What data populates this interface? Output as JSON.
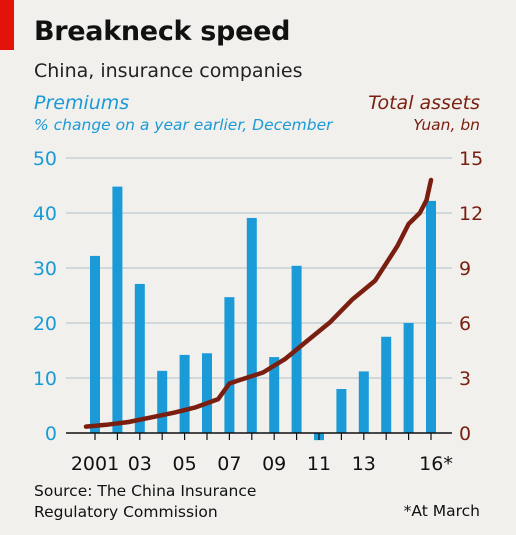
{
  "colors": {
    "accent": "#e3120b",
    "premiums": "#1a9bd7",
    "assets": "#7a1f10",
    "grid": "#bcc9d2",
    "background": "#f1f0ec"
  },
  "header": {
    "title": "Breakneck speed",
    "subtitle": "China, insurance companies"
  },
  "left_axis_title": {
    "line1": "Premiums",
    "line2": "% change on a year earlier, December"
  },
  "right_axis_title": {
    "line1": "Total assets",
    "line2": "Yuan, bn"
  },
  "footer": {
    "source_line1": "Source: The China Insurance",
    "source_line2": "Regulatory Commission",
    "footnote": "*At March"
  },
  "chart_data": {
    "type": "bar",
    "years": [
      2001,
      2002,
      2003,
      2004,
      2005,
      2006,
      2007,
      2008,
      2009,
      2010,
      2011,
      2012,
      2013,
      2014,
      2015,
      2016
    ],
    "x_tick_labels": [
      "2001",
      "03",
      "05",
      "07",
      "09",
      "11",
      "13",
      "16*"
    ],
    "x_tick_years": [
      2001,
      2003,
      2005,
      2007,
      2009,
      2011,
      2013,
      2016
    ],
    "series": [
      {
        "name": "Premiums",
        "type": "bar",
        "axis": "left",
        "values": [
          32.2,
          44.8,
          27.1,
          11.3,
          14.2,
          14.5,
          24.7,
          39.1,
          13.8,
          30.4,
          -1.3,
          8.0,
          11.2,
          17.5,
          20.0,
          42.2
        ]
      },
      {
        "name": "Total assets",
        "type": "line",
        "axis": "right",
        "x": [
          2000.6,
          2001.5,
          2002.5,
          2003.5,
          2004.5,
          2005.5,
          2006.5,
          2007.0,
          2007.5,
          2008.5,
          2009.5,
          2010.5,
          2011.5,
          2012.5,
          2013.5,
          2014.5,
          2015.0,
          2015.5,
          2015.8,
          2016.0
        ],
        "values": [
          0.35,
          0.45,
          0.6,
          0.85,
          1.1,
          1.4,
          1.85,
          2.7,
          2.9,
          3.3,
          4.05,
          5.05,
          6.05,
          7.3,
          8.3,
          10.2,
          11.4,
          12.0,
          12.7,
          13.8
        ]
      }
    ],
    "y_left": {
      "ticks": [
        0,
        10,
        20,
        30,
        40,
        50
      ],
      "ylim": [
        0,
        50
      ]
    },
    "y_right": {
      "ticks": [
        0,
        3,
        6,
        9,
        12,
        15
      ],
      "ylim": [
        0,
        15
      ]
    },
    "grid": true
  }
}
